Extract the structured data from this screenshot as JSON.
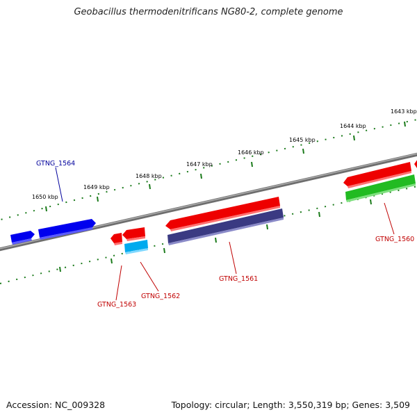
{
  "title": "Geobacillus thermodenitrificans NG80-2, complete genome",
  "footer": {
    "accession": "Accession: NC_009328",
    "topology": "Topology: circular; Length: 3,550,319 bp; Genes: 3,509"
  },
  "colors": {
    "backbone": "#808080",
    "ticks": "#1a7a1a",
    "label_forward": "#00009c",
    "label_reverse": "#c00000",
    "blue": "#0000ee",
    "red": "#ee0000",
    "cyan": "#00aaee",
    "navy": "#3a3a82",
    "green": "#22bb22"
  },
  "scale": {
    "outer": [
      {
        "label": "1650 kbp"
      },
      {
        "label": "1649 kbp"
      },
      {
        "label": "1648 kbp"
      },
      {
        "label": "1647 kbp"
      },
      {
        "label": "1646 kbp"
      },
      {
        "label": "1645 kbp"
      },
      {
        "label": "1644 kbp"
      },
      {
        "label": "1643 kbp"
      }
    ]
  },
  "genes": [
    {
      "name": "GTNG_1564",
      "strand": "forward",
      "color": "blue",
      "labeled": true
    },
    {
      "name": "",
      "strand": "forward",
      "color": "blue",
      "labeled": false
    },
    {
      "name": "GTNG_1563",
      "strand": "reverse",
      "color": "red",
      "labeled": true
    },
    {
      "name": "GTNG_1562",
      "strand": "reverse",
      "color": "red",
      "labeled": true
    },
    {
      "name": "GTNG_1561",
      "strand": "reverse",
      "color": "red",
      "labeled": true
    },
    {
      "name": "GTNG_1560",
      "strand": "reverse",
      "color": "red",
      "labeled": true
    }
  ]
}
